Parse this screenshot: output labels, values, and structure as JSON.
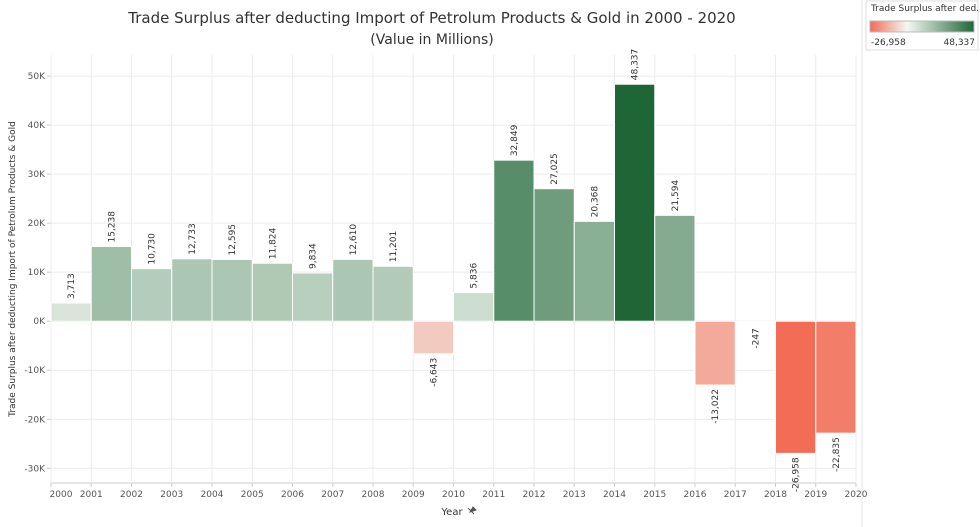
{
  "chart_data": {
    "type": "bar",
    "title": "Trade Surplus after deducting Import of Petrolum Products & Gold in 2000 - 2020",
    "subtitle": "(Value in Millions)",
    "x_label": "Year",
    "y_label": "Trade Surplus after deducting Import of Petrolum Products & Gold",
    "x": [
      2000,
      2001,
      2002,
      2003,
      2004,
      2005,
      2006,
      2007,
      2008,
      2009,
      2010,
      2011,
      2012,
      2013,
      2014,
      2015,
      2016,
      2017,
      2018,
      2019
    ],
    "values": [
      3713,
      15238,
      10730,
      12733,
      12595,
      11824,
      9834,
      12610,
      11201,
      -6643,
      5836,
      32849,
      27025,
      20368,
      48337,
      21594,
      -13022,
      -247,
      -26958,
      -22835
    ],
    "value_labels": [
      "3,713",
      "15,238",
      "10,730",
      "12,733",
      "12,595",
      "11,824",
      "9,834",
      "12,610",
      "11,201",
      "-6,643",
      "5,836",
      "32,849",
      "27,025",
      "20,368",
      "48,337",
      "21,594",
      "-13,022",
      "-247",
      "-26,958",
      "-22,835"
    ],
    "xlim": [
      2000,
      2020
    ],
    "xticks": [
      2000,
      2001,
      2002,
      2003,
      2004,
      2005,
      2006,
      2007,
      2008,
      2009,
      2010,
      2011,
      2012,
      2013,
      2014,
      2015,
      2016,
      2017,
      2018,
      2019,
      2020
    ],
    "ylim": [
      -33000,
      54300
    ],
    "yticks": [
      {
        "value": -30000,
        "label": "-30K"
      },
      {
        "value": -20000,
        "label": "-20K"
      },
      {
        "value": -10000,
        "label": "-10K"
      },
      {
        "value": 0,
        "label": "0K"
      },
      {
        "value": 10000,
        "label": "10K"
      },
      {
        "value": 20000,
        "label": "20K"
      },
      {
        "value": 30000,
        "label": "30K"
      },
      {
        "value": 40000,
        "label": "40K"
      },
      {
        "value": 50000,
        "label": "50K"
      }
    ],
    "grid": true,
    "color_scale": {
      "low": "#f26c56",
      "mid": "#f4f8f2",
      "high": "#1f6637"
    },
    "color_legend": {
      "title": "Trade Surplus after ded...",
      "min": {
        "value": -26958,
        "label": "-26,958"
      },
      "max": {
        "value": 48337,
        "label": "48,337"
      }
    }
  }
}
